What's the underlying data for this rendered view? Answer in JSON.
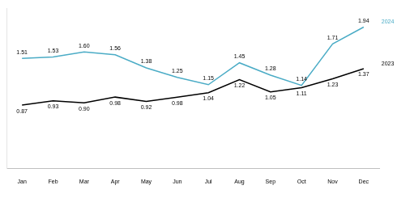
{
  "chart_data": {
    "type": "line",
    "categories": [
      "Jan",
      "Feb",
      "Mar",
      "Apr",
      "May",
      "Jun",
      "Jul",
      "Aug",
      "Sep",
      "Oct",
      "Nov",
      "Dec"
    ],
    "series": [
      {
        "name": "2024",
        "color": "#4bacc6",
        "values": [
          1.51,
          1.53,
          1.6,
          1.56,
          1.38,
          1.25,
          1.15,
          1.45,
          1.28,
          1.14,
          1.71,
          1.94
        ],
        "value_labels": [
          "1.51",
          "1.53",
          "1.60",
          "1.56",
          "1.38",
          "1.25",
          "1.15",
          "1.45",
          "1.28",
          "1.14",
          "1.71",
          "1.94"
        ]
      },
      {
        "name": "2023",
        "color": "#000000",
        "values": [
          0.87,
          0.93,
          0.9,
          0.98,
          0.92,
          0.98,
          1.04,
          1.22,
          1.05,
          1.11,
          1.23,
          1.37
        ],
        "value_labels": [
          "0.87",
          "0.93",
          "0.90",
          "0.98",
          "0.92",
          "0.98",
          "1.04",
          "1.22",
          "1.05",
          "1.11",
          "1.23",
          "1.37"
        ]
      }
    ],
    "ylim": [
      0,
      2.2
    ],
    "grid": false,
    "data_labels": true,
    "tick_labels": "x"
  }
}
